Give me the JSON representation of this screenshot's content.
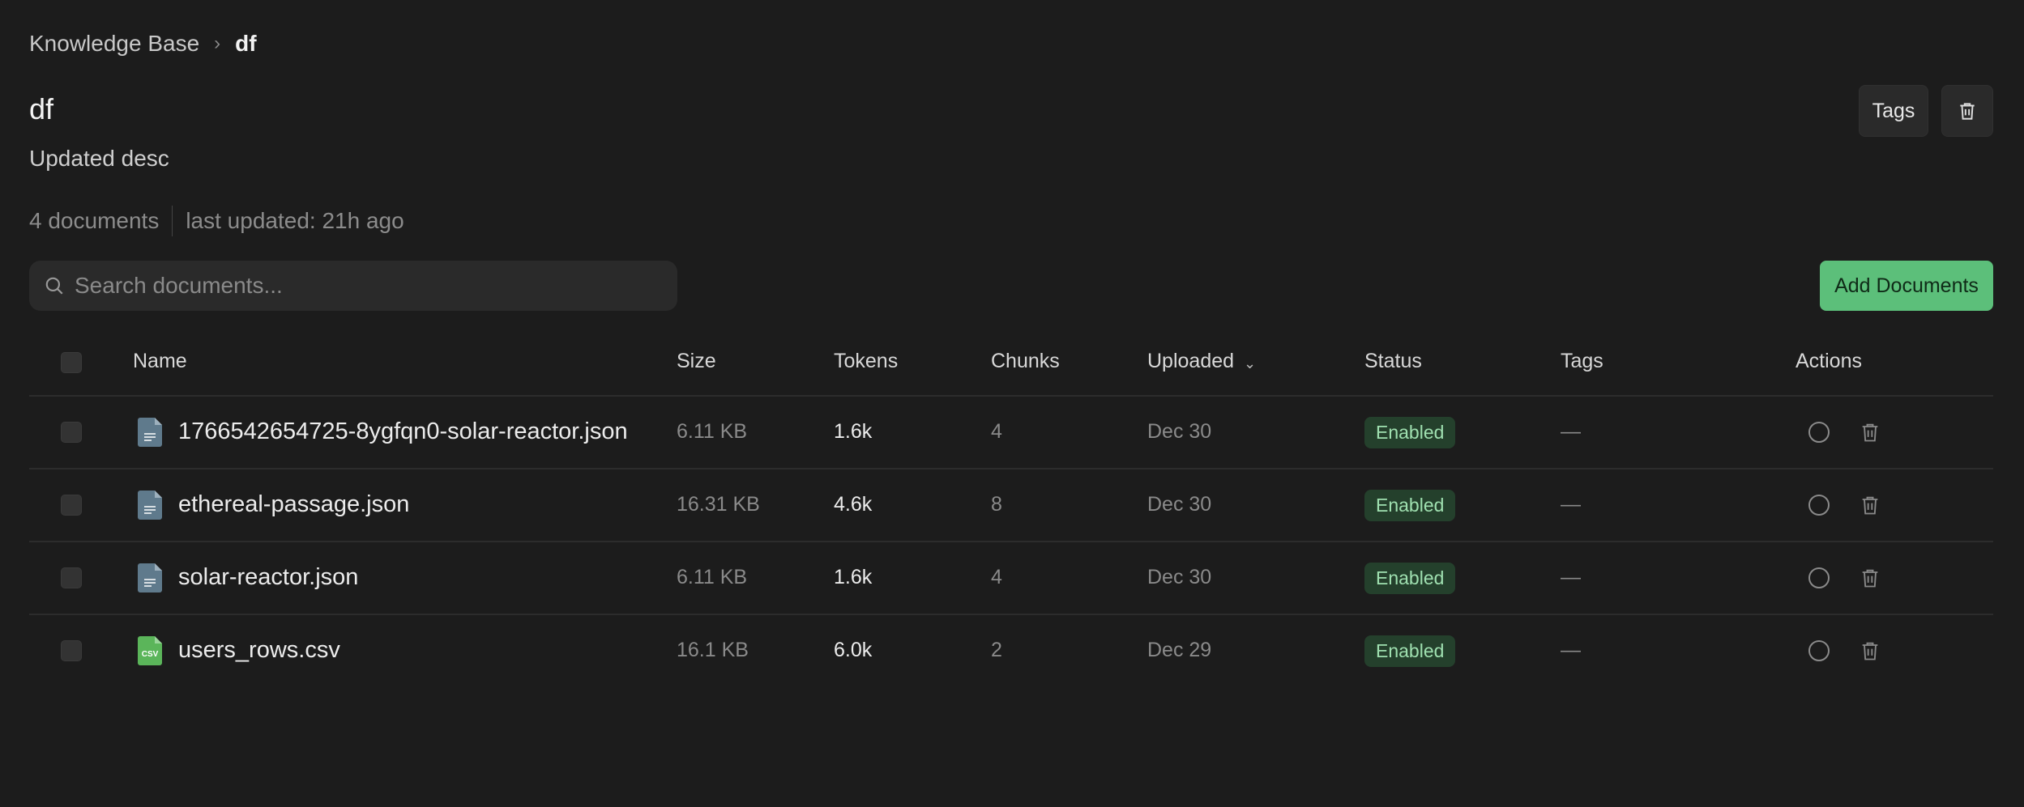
{
  "breadcrumb": {
    "root": "Knowledge Base",
    "current": "df"
  },
  "header": {
    "title": "df",
    "description": "Updated desc",
    "doc_count": "4 documents",
    "last_updated": "last updated: 21h ago",
    "tags_button": "Tags"
  },
  "search": {
    "placeholder": "Search documents..."
  },
  "add_button": "Add Documents",
  "table": {
    "columns": [
      "Name",
      "Size",
      "Tokens",
      "Chunks",
      "Uploaded",
      "Status",
      "Tags",
      "Actions"
    ],
    "sort_column": "Uploaded",
    "rows": [
      {
        "name": "1766542654725-8ygfqn0-solar-reactor.json",
        "type": "json",
        "size": "6.11 KB",
        "tokens": "1.6k",
        "chunks": "4",
        "uploaded": "Dec 30",
        "status": "Enabled",
        "tags": "—"
      },
      {
        "name": "ethereal-passage.json",
        "type": "json",
        "size": "16.31 KB",
        "tokens": "4.6k",
        "chunks": "8",
        "uploaded": "Dec 30",
        "status": "Enabled",
        "tags": "—"
      },
      {
        "name": "solar-reactor.json",
        "type": "json",
        "size": "6.11 KB",
        "tokens": "1.6k",
        "chunks": "4",
        "uploaded": "Dec 30",
        "status": "Enabled",
        "tags": "—"
      },
      {
        "name": "users_rows.csv",
        "type": "csv",
        "size": "16.1 KB",
        "tokens": "6.0k",
        "chunks": "2",
        "uploaded": "Dec 29",
        "status": "Enabled",
        "tags": "—"
      }
    ]
  },
  "icons": {
    "csv_label": "csv"
  },
  "colors": {
    "accent": "#5cbf7a",
    "status_bg": "#24402c",
    "status_text": "#9fe0b0",
    "json_icon": "#5f7a8c",
    "csv_icon": "#5bb55a"
  }
}
